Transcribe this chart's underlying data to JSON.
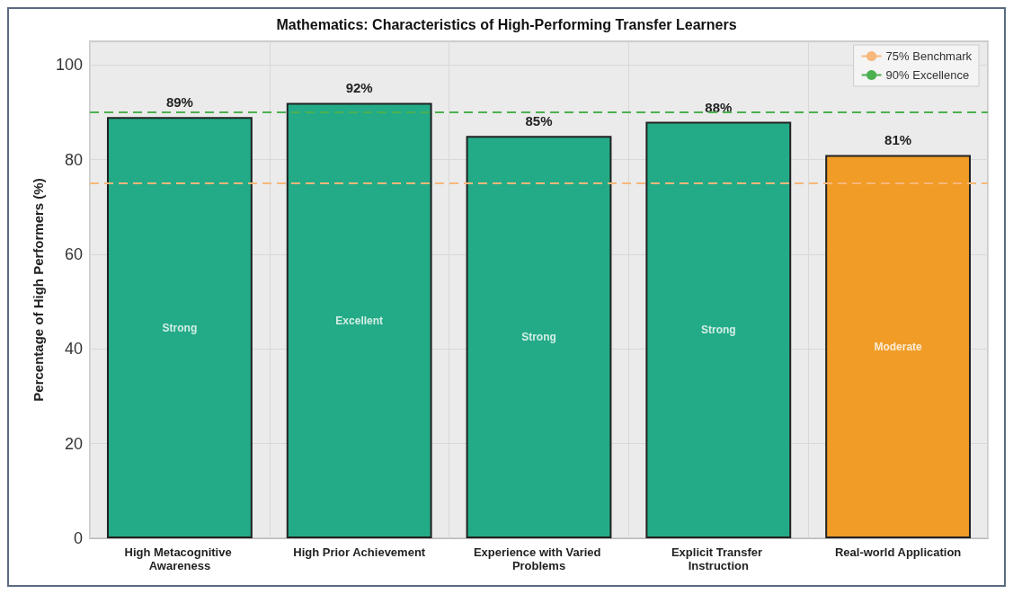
{
  "chart_data": {
    "type": "bar",
    "title": "Mathematics: Characteristics of High-Performing Transfer Learners",
    "ylabel": "Percentage of High Performers (%)",
    "categories": [
      "High Metacognitive Awareness",
      "High Prior Achievement",
      "Experience with Varied Problems",
      "Explicit Transfer Instruction",
      "Real-world Application"
    ],
    "values": [
      89,
      92,
      85,
      88,
      81
    ],
    "colors": [
      "#23ab87",
      "#23ab87",
      "#23ab87",
      "#23ab87",
      "#f09c27"
    ],
    "value_labels": [
      "89%",
      "92%",
      "85%",
      "88%",
      "81%"
    ],
    "annotations": [
      "Strong",
      "Excellent",
      "Strong",
      "Strong",
      "Moderate"
    ],
    "ylim": [
      0,
      105
    ],
    "yticks": [
      0,
      20,
      40,
      60,
      80,
      100
    ],
    "grid": true,
    "legend": "top right",
    "ref_lines": [
      {
        "axis": "y",
        "value": 75,
        "label": "75% Benchmark",
        "color": "#f7b77a",
        "line_style": "dashed"
      },
      {
        "axis": "y",
        "value": 90,
        "label": "90% Excellence",
        "color": "#4cb050",
        "line_style": "dashed"
      }
    ]
  }
}
